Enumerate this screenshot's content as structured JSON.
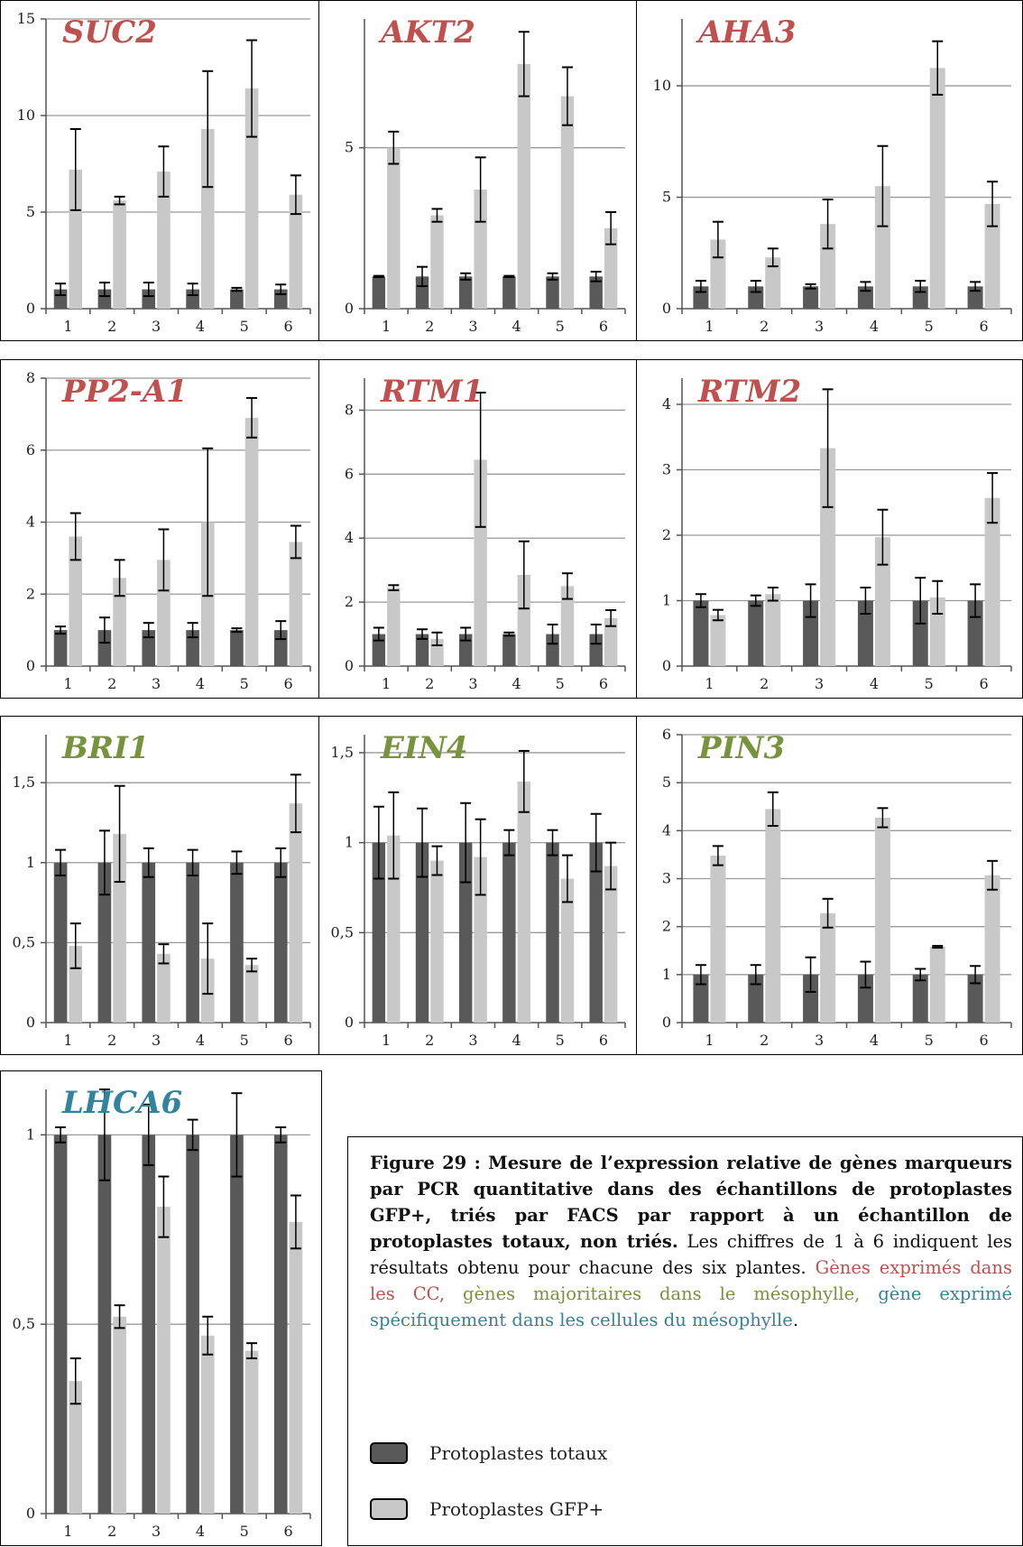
{
  "colors": {
    "total": "#595959",
    "gfp": "#c8c8c8",
    "axis": "#555555",
    "grid": "#999999",
    "cc": "#c0504d",
    "meso": "#77933c",
    "meso_specific": "#31849b"
  },
  "chart_data": [
    {
      "type": "bar",
      "title": "SUC2",
      "title_color": "cc",
      "categories": [
        "1",
        "2",
        "3",
        "4",
        "5",
        "6"
      ],
      "ylim": [
        0,
        15
      ],
      "yticks": [
        "0",
        "5",
        "10",
        "15"
      ],
      "ytick_values": [
        0,
        5,
        10,
        15
      ],
      "series": [
        {
          "values": [
            1,
            1,
            1,
            1,
            1,
            1
          ],
          "err": [
            0.3,
            0.35,
            0.35,
            0.3,
            0.08,
            0.25
          ]
        },
        {
          "values": [
            7.2,
            5.6,
            7.1,
            9.3,
            11.4,
            5.9
          ],
          "err": [
            2.1,
            0.2,
            1.3,
            3.0,
            2.5,
            1.0
          ]
        }
      ]
    },
    {
      "type": "bar",
      "title": "AKT2",
      "title_color": "cc",
      "categories": [
        "1",
        "2",
        "3",
        "4",
        "5",
        "6"
      ],
      "ylim": [
        0,
        9
      ],
      "yticks": [
        "0",
        "5"
      ],
      "ytick_values": [
        0,
        5
      ],
      "series": [
        {
          "values": [
            1,
            1,
            1,
            1,
            1,
            1
          ],
          "err": [
            0.02,
            0.3,
            0.1,
            0.02,
            0.1,
            0.15
          ]
        },
        {
          "values": [
            5.0,
            2.9,
            3.7,
            7.6,
            6.6,
            2.5
          ],
          "err": [
            0.5,
            0.2,
            1.0,
            1.0,
            0.9,
            0.5
          ]
        }
      ]
    },
    {
      "type": "bar",
      "title": "AHA3",
      "title_color": "cc",
      "categories": [
        "1",
        "2",
        "3",
        "4",
        "5",
        "6"
      ],
      "ylim": [
        0,
        13
      ],
      "yticks": [
        "0",
        "5",
        "10"
      ],
      "ytick_values": [
        0,
        5,
        10
      ],
      "series": [
        {
          "values": [
            1,
            1,
            1,
            1,
            1,
            1
          ],
          "err": [
            0.25,
            0.25,
            0.1,
            0.2,
            0.25,
            0.2
          ]
        },
        {
          "values": [
            3.1,
            2.3,
            3.8,
            5.5,
            10.8,
            4.7
          ],
          "err": [
            0.8,
            0.4,
            1.1,
            1.8,
            1.2,
            1.0
          ]
        }
      ]
    },
    {
      "type": "bar",
      "title": "PP2-A1",
      "title_color": "cc",
      "categories": [
        "1",
        "2",
        "3",
        "4",
        "5",
        "6"
      ],
      "ylim": [
        0,
        8
      ],
      "yticks": [
        "0",
        "2",
        "4",
        "6",
        "8"
      ],
      "ytick_values": [
        0,
        2,
        4,
        6,
        8
      ],
      "series": [
        {
          "values": [
            1,
            1,
            1,
            1,
            1,
            1
          ],
          "err": [
            0.1,
            0.35,
            0.2,
            0.2,
            0.05,
            0.25
          ]
        },
        {
          "values": [
            3.6,
            2.45,
            2.95,
            4.0,
            6.9,
            3.45
          ],
          "err": [
            0.65,
            0.5,
            0.85,
            2.05,
            0.55,
            0.45
          ]
        }
      ]
    },
    {
      "type": "bar",
      "title": "RTM1",
      "title_color": "cc",
      "categories": [
        "1",
        "2",
        "3",
        "4",
        "5",
        "6"
      ],
      "ylim": [
        0,
        9
      ],
      "yticks": [
        "0",
        "2",
        "4",
        "6",
        "8"
      ],
      "ytick_values": [
        0,
        2,
        4,
        6,
        8
      ],
      "series": [
        {
          "values": [
            1,
            1,
            1,
            1,
            1,
            1
          ],
          "err": [
            0.2,
            0.15,
            0.2,
            0.05,
            0.3,
            0.3
          ]
        },
        {
          "values": [
            2.45,
            0.85,
            6.45,
            2.85,
            2.5,
            1.5
          ],
          "err": [
            0.08,
            0.2,
            2.1,
            1.05,
            0.4,
            0.25
          ]
        }
      ]
    },
    {
      "type": "bar",
      "title": "RTM2",
      "title_color": "cc",
      "categories": [
        "1",
        "2",
        "3",
        "4",
        "5",
        "6"
      ],
      "ylim": [
        0,
        4.4
      ],
      "yticks": [
        "0",
        "1",
        "2",
        "3",
        "4"
      ],
      "ytick_values": [
        0,
        1,
        2,
        3,
        4
      ],
      "series": [
        {
          "values": [
            1,
            1,
            1,
            1,
            1,
            1
          ],
          "err": [
            0.1,
            0.08,
            0.25,
            0.2,
            0.35,
            0.25
          ]
        },
        {
          "values": [
            0.78,
            1.1,
            3.33,
            1.97,
            1.05,
            2.57
          ],
          "err": [
            0.08,
            0.1,
            0.9,
            0.42,
            0.25,
            0.38
          ]
        }
      ]
    },
    {
      "type": "bar",
      "title": "BRI1",
      "title_color": "meso",
      "categories": [
        "1",
        "2",
        "3",
        "4",
        "5",
        "6"
      ],
      "ylim": [
        0,
        1.8
      ],
      "yticks": [
        "0",
        "0,5",
        "1",
        "1,5"
      ],
      "ytick_values": [
        0,
        0.5,
        1,
        1.5
      ],
      "series": [
        {
          "values": [
            1,
            1,
            1,
            1,
            1,
            1
          ],
          "err": [
            0.08,
            0.2,
            0.09,
            0.08,
            0.07,
            0.09
          ]
        },
        {
          "values": [
            0.48,
            1.18,
            0.43,
            0.4,
            0.36,
            1.37
          ],
          "err": [
            0.14,
            0.3,
            0.06,
            0.22,
            0.04,
            0.18
          ]
        }
      ]
    },
    {
      "type": "bar",
      "title": "EIN4",
      "title_color": "meso",
      "categories": [
        "1",
        "2",
        "3",
        "4",
        "5",
        "6"
      ],
      "ylim": [
        0,
        1.6
      ],
      "yticks": [
        "0",
        "0,5",
        "1",
        "1,5"
      ],
      "ytick_values": [
        0,
        0.5,
        1,
        1.5
      ],
      "series": [
        {
          "values": [
            1,
            1,
            1,
            1,
            1,
            1
          ],
          "err": [
            0.2,
            0.19,
            0.22,
            0.07,
            0.07,
            0.16
          ]
        },
        {
          "values": [
            1.04,
            0.9,
            0.92,
            1.34,
            0.8,
            0.87
          ],
          "err": [
            0.24,
            0.08,
            0.21,
            0.17,
            0.13,
            0.13
          ]
        }
      ]
    },
    {
      "type": "bar",
      "title": "PIN3",
      "title_color": "meso",
      "categories": [
        "1",
        "2",
        "3",
        "4",
        "5",
        "6"
      ],
      "ylim": [
        0,
        6
      ],
      "yticks": [
        "0",
        "1",
        "2",
        "3",
        "4",
        "5",
        "6"
      ],
      "ytick_values": [
        0,
        1,
        2,
        3,
        4,
        5,
        6
      ],
      "series": [
        {
          "values": [
            1,
            1,
            1,
            1,
            1,
            1
          ],
          "err": [
            0.2,
            0.2,
            0.36,
            0.27,
            0.12,
            0.18
          ]
        },
        {
          "values": [
            3.48,
            4.45,
            2.28,
            4.27,
            1.58,
            3.07
          ],
          "err": [
            0.2,
            0.35,
            0.3,
            0.2,
            0.02,
            0.3
          ]
        }
      ]
    },
    {
      "type": "bar",
      "title": "LHCA6",
      "title_color": "meso_specific",
      "categories": [
        "1",
        "2",
        "3",
        "4",
        "5",
        "6"
      ],
      "ylim": [
        0,
        1.12
      ],
      "yticks": [
        "0",
        "0,5",
        "1"
      ],
      "ytick_values": [
        0,
        0.5,
        1
      ],
      "series": [
        {
          "values": [
            1,
            1,
            1,
            1,
            1,
            1
          ],
          "err": [
            0.02,
            0.12,
            0.08,
            0.04,
            0.11,
            0.02
          ]
        },
        {
          "values": [
            0.35,
            0.52,
            0.81,
            0.47,
            0.43,
            0.77
          ],
          "err": [
            0.06,
            0.03,
            0.08,
            0.05,
            0.02,
            0.07
          ]
        }
      ]
    }
  ],
  "caption": {
    "bold": "Figure 29 : Mesure de l’expression relative de gènes marqueurs par PCR quantitative dans des échantillons de protoplastes GFP+, triés par FACS par rapport à un échantillon de protoplastes totaux, non triés.",
    "normal": " Les chiffres de 1 à 6 indiquent les résultats obtenu pour chacune des six plantes.",
    "cc_text": " Gènes exprimés dans les CC,",
    "meso_text": " gènes majoritaires dans le mésophylle,",
    "meso_specific_text": " gène exprimé spécifiquement dans les cellules du mésophylle",
    "end": "."
  },
  "legend": {
    "total_label": "Protoplastes totaux",
    "gfp_label": "Protoplastes GFP+"
  }
}
